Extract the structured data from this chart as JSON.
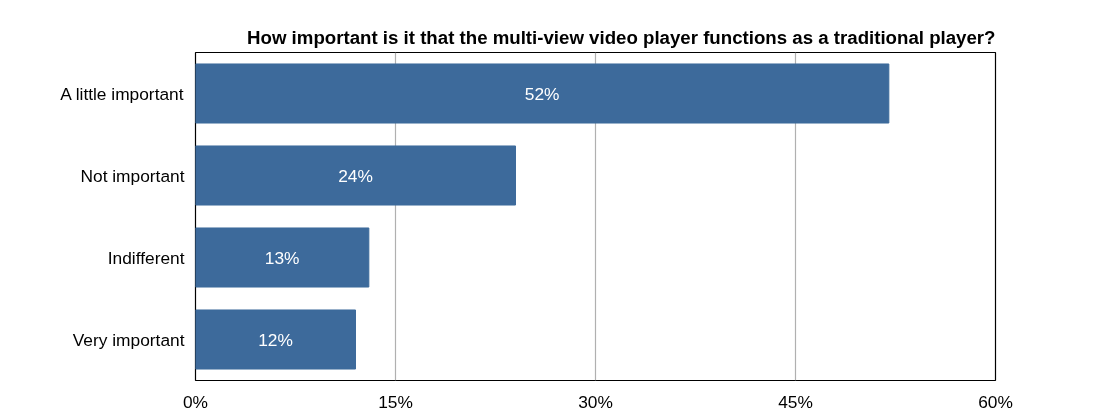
{
  "chart_data": {
    "type": "bar",
    "orientation": "horizontal",
    "title": "How important is it that the multi-view video player functions as a traditional player?",
    "categories": [
      "A little important",
      "Not important",
      "Indifferent",
      "Very important"
    ],
    "values": [
      52,
      24,
      13,
      12
    ],
    "color": "#3d6a9b",
    "value_labels": [
      "52%",
      "24%",
      "13%",
      "12%"
    ],
    "xlim": [
      0,
      60
    ],
    "xticks": [
      {
        "value": 0,
        "label": "0%"
      },
      {
        "value": 15,
        "label": "15%"
      },
      {
        "value": 30,
        "label": "30%"
      },
      {
        "value": 45,
        "label": "45%"
      },
      {
        "value": 60,
        "label": "60%"
      }
    ],
    "grid": "x"
  }
}
